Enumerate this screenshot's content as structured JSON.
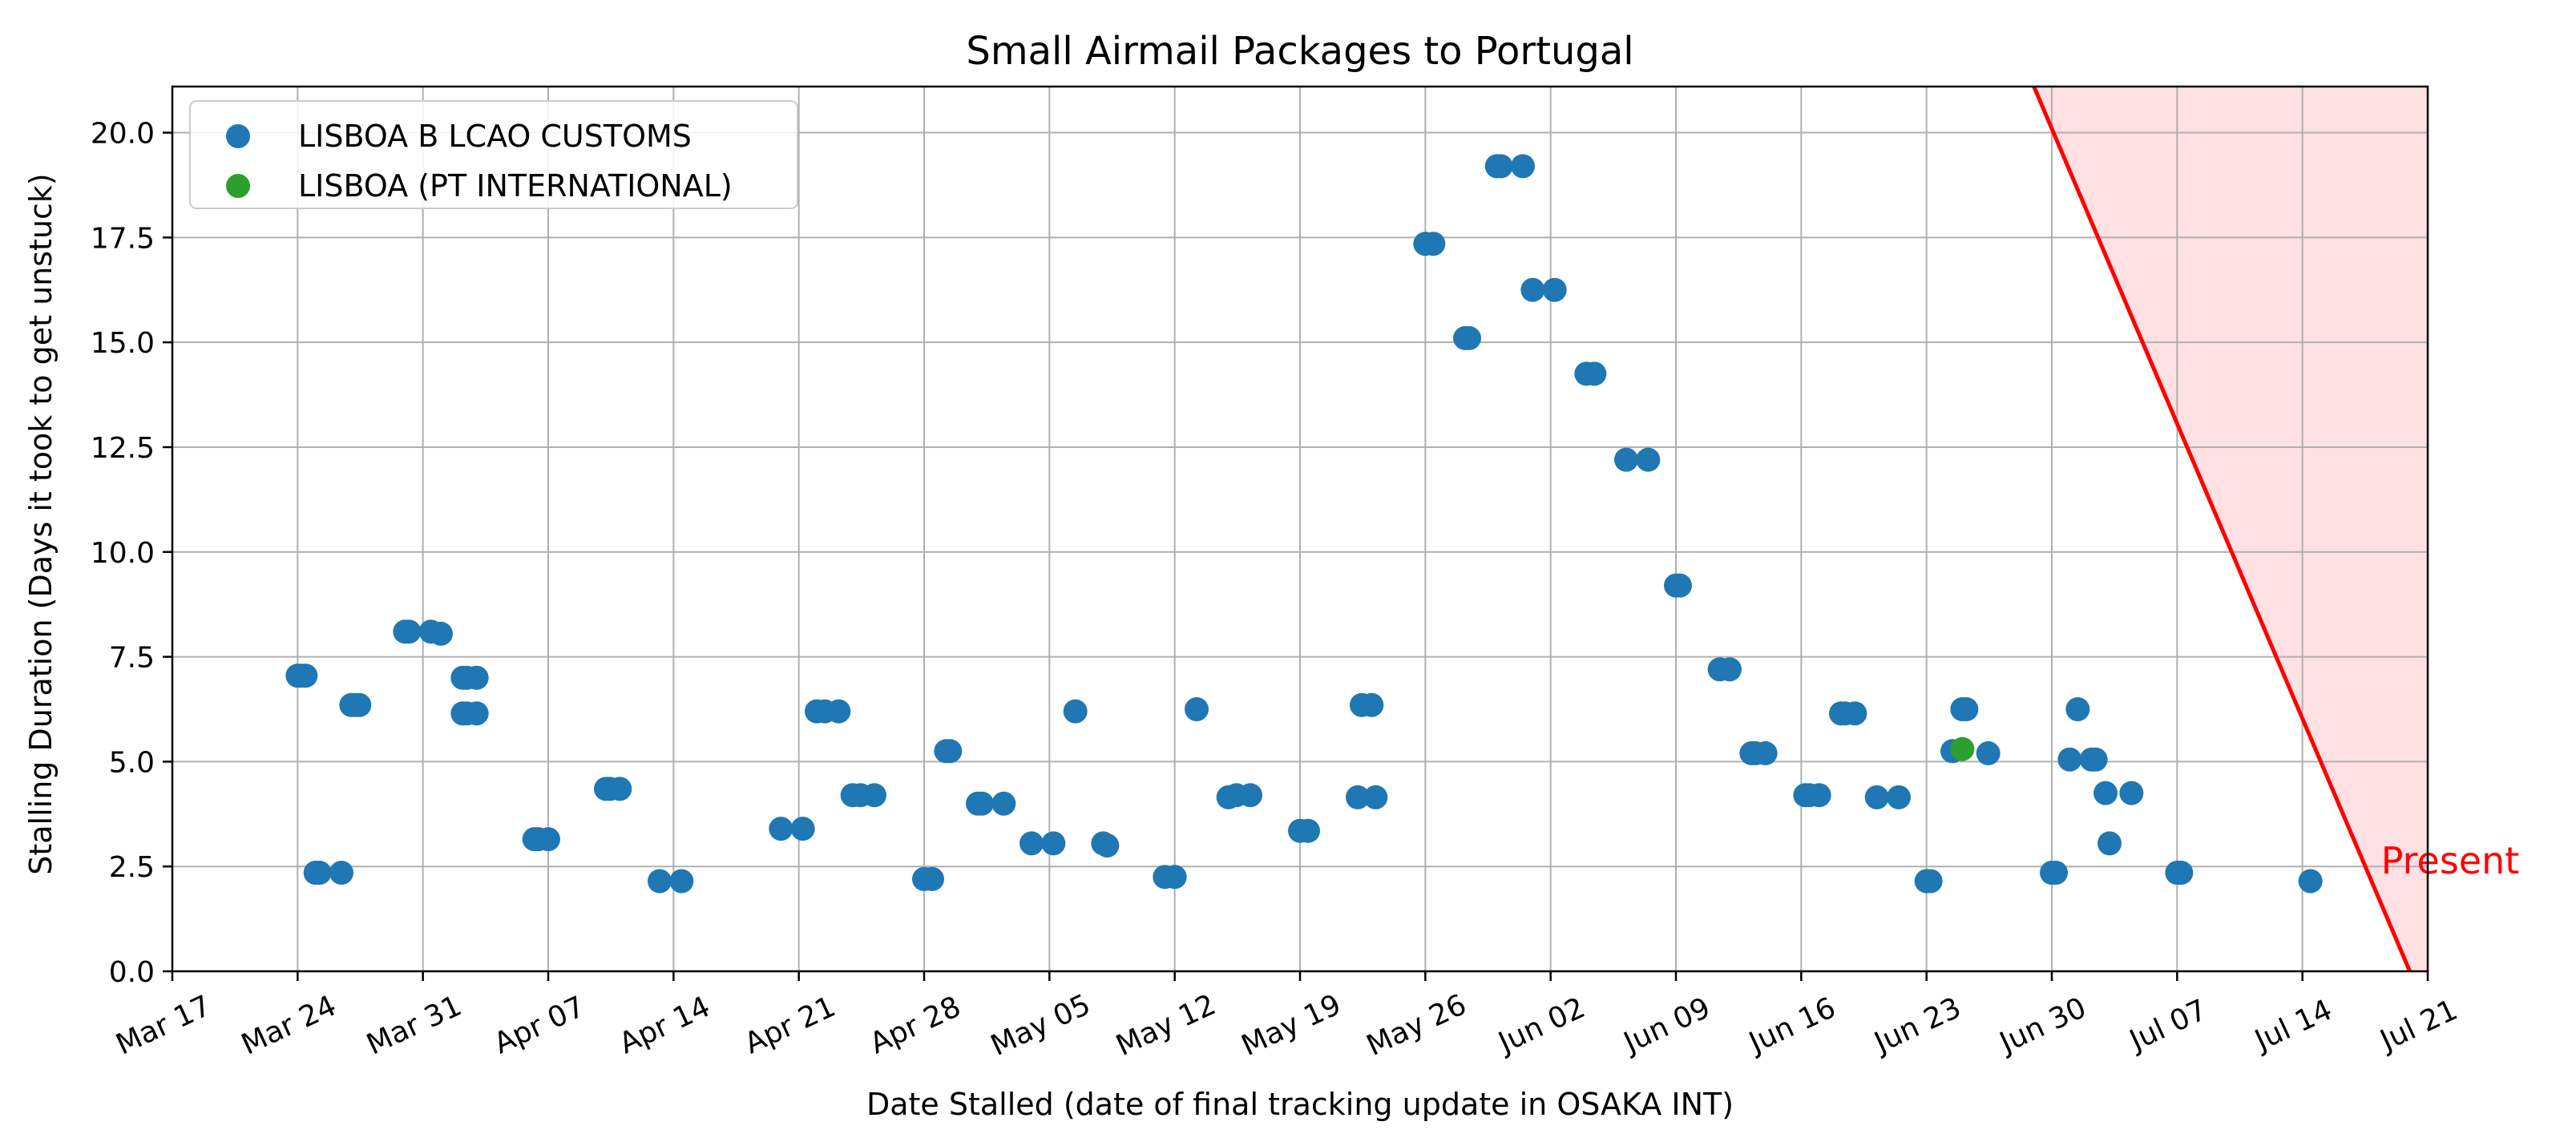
{
  "chart_data": {
    "type": "scatter",
    "title": "Small Airmail Packages to Portugal",
    "xlabel": "Date Stalled (date of final tracking update in OSAKA INT)",
    "ylabel": "Stalling Duration (Days it took to get unstuck)",
    "x_is_date": true,
    "xlim": [
      "2025-03-17",
      "2025-07-21"
    ],
    "ylim": [
      0,
      21.1
    ],
    "x_ticks": [
      {
        "date": "2025-03-17",
        "label": "Mar 17"
      },
      {
        "date": "2025-03-24",
        "label": "Mar 24"
      },
      {
        "date": "2025-03-31",
        "label": "Mar 31"
      },
      {
        "date": "2025-04-07",
        "label": "Apr 07"
      },
      {
        "date": "2025-04-14",
        "label": "Apr 14"
      },
      {
        "date": "2025-04-21",
        "label": "Apr 21"
      },
      {
        "date": "2025-04-28",
        "label": "Apr 28"
      },
      {
        "date": "2025-05-05",
        "label": "May 05"
      },
      {
        "date": "2025-05-12",
        "label": "May 12"
      },
      {
        "date": "2025-05-19",
        "label": "May 19"
      },
      {
        "date": "2025-05-26",
        "label": "May 26"
      },
      {
        "date": "2025-06-02",
        "label": "Jun 02"
      },
      {
        "date": "2025-06-09",
        "label": "Jun 09"
      },
      {
        "date": "2025-06-16",
        "label": "Jun 16"
      },
      {
        "date": "2025-06-23",
        "label": "Jun 23"
      },
      {
        "date": "2025-06-30",
        "label": "Jun 30"
      },
      {
        "date": "2025-07-07",
        "label": "Jul 07"
      },
      {
        "date": "2025-07-14",
        "label": "Jul 14"
      },
      {
        "date": "2025-07-21",
        "label": "Jul 21"
      }
    ],
    "y_ticks": [
      {
        "value": 0.0,
        "label": "0.0"
      },
      {
        "value": 2.5,
        "label": "2.5"
      },
      {
        "value": 5.0,
        "label": "5.0"
      },
      {
        "value": 7.5,
        "label": "7.5"
      },
      {
        "value": 10.0,
        "label": "10.0"
      },
      {
        "value": 12.5,
        "label": "12.5"
      },
      {
        "value": 15.0,
        "label": "15.0"
      },
      {
        "value": 17.5,
        "label": "17.5"
      },
      {
        "value": 20.0,
        "label": "20.0"
      }
    ],
    "grid": true,
    "legend": "top-left",
    "series": [
      {
        "name": "LISBOA B LCAO CUSTOMS",
        "color": "#1f77b4",
        "points": [
          {
            "x": "2025-03-24",
            "y": 7.05
          },
          {
            "x": "2025-03-24",
            "y": 7.05
          },
          {
            "x": "2025-03-24",
            "y": 7.05
          },
          {
            "x": "2025-03-25",
            "y": 2.35
          },
          {
            "x": "2025-03-25",
            "y": 2.35
          },
          {
            "x": "2025-03-26",
            "y": 2.35
          },
          {
            "x": "2025-03-27",
            "y": 6.35
          },
          {
            "x": "2025-03-27",
            "y": 6.35
          },
          {
            "x": "2025-03-27",
            "y": 6.35
          },
          {
            "x": "2025-03-30",
            "y": 8.1
          },
          {
            "x": "2025-03-30",
            "y": 8.1
          },
          {
            "x": "2025-03-31",
            "y": 8.1
          },
          {
            "x": "2025-04-01",
            "y": 8.05
          },
          {
            "x": "2025-04-02",
            "y": 7.0
          },
          {
            "x": "2025-04-02",
            "y": 7.0
          },
          {
            "x": "2025-04-03",
            "y": 7.0
          },
          {
            "x": "2025-04-02",
            "y": 6.15
          },
          {
            "x": "2025-04-02",
            "y": 6.15
          },
          {
            "x": "2025-04-03",
            "y": 6.15
          },
          {
            "x": "2025-04-06",
            "y": 3.15
          },
          {
            "x": "2025-04-06",
            "y": 3.15
          },
          {
            "x": "2025-04-07",
            "y": 3.15
          },
          {
            "x": "2025-04-10",
            "y": 4.35
          },
          {
            "x": "2025-04-10",
            "y": 4.35
          },
          {
            "x": "2025-04-11",
            "y": 4.35
          },
          {
            "x": "2025-04-13",
            "y": 2.15
          },
          {
            "x": "2025-04-14",
            "y": 2.15
          },
          {
            "x": "2025-04-20",
            "y": 3.4
          },
          {
            "x": "2025-04-21",
            "y": 3.4
          },
          {
            "x": "2025-04-22",
            "y": 6.2
          },
          {
            "x": "2025-04-22",
            "y": 6.2
          },
          {
            "x": "2025-04-23",
            "y": 6.2
          },
          {
            "x": "2025-04-24",
            "y": 4.2
          },
          {
            "x": "2025-04-24",
            "y": 4.2
          },
          {
            "x": "2025-04-25",
            "y": 4.2
          },
          {
            "x": "2025-04-28",
            "y": 2.2
          },
          {
            "x": "2025-04-28",
            "y": 2.2
          },
          {
            "x": "2025-04-29",
            "y": 5.25
          },
          {
            "x": "2025-04-29",
            "y": 5.25
          },
          {
            "x": "2025-05-01",
            "y": 4.0
          },
          {
            "x": "2025-05-01",
            "y": 4.0
          },
          {
            "x": "2025-05-02",
            "y": 4.0
          },
          {
            "x": "2025-05-04",
            "y": 3.05
          },
          {
            "x": "2025-05-05",
            "y": 3.05
          },
          {
            "x": "2025-05-06",
            "y": 6.2
          },
          {
            "x": "2025-05-08",
            "y": 3.05
          },
          {
            "x": "2025-05-08",
            "y": 3.0
          },
          {
            "x": "2025-05-11",
            "y": 2.25
          },
          {
            "x": "2025-05-12",
            "y": 2.25
          },
          {
            "x": "2025-05-13",
            "y": 6.25
          },
          {
            "x": "2025-05-15",
            "y": 4.2
          },
          {
            "x": "2025-05-15",
            "y": 4.15
          },
          {
            "x": "2025-05-16",
            "y": 4.2
          },
          {
            "x": "2025-05-19",
            "y": 3.35
          },
          {
            "x": "2025-05-19",
            "y": 3.35
          },
          {
            "x": "2025-05-22",
            "y": 4.15
          },
          {
            "x": "2025-05-22",
            "y": 6.35
          },
          {
            "x": "2025-05-23",
            "y": 6.35
          },
          {
            "x": "2025-05-23",
            "y": 4.15
          },
          {
            "x": "2025-05-26",
            "y": 17.35
          },
          {
            "x": "2025-05-26",
            "y": 17.35
          },
          {
            "x": "2025-05-28",
            "y": 15.1
          },
          {
            "x": "2025-05-28",
            "y": 15.1
          },
          {
            "x": "2025-05-30",
            "y": 19.2
          },
          {
            "x": "2025-05-30",
            "y": 19.2
          },
          {
            "x": "2025-05-31",
            "y": 19.2
          },
          {
            "x": "2025-06-01",
            "y": 16.25
          },
          {
            "x": "2025-06-02",
            "y": 16.25
          },
          {
            "x": "2025-06-04",
            "y": 14.25
          },
          {
            "x": "2025-06-04",
            "y": 14.25
          },
          {
            "x": "2025-06-06",
            "y": 12.2
          },
          {
            "x": "2025-06-07",
            "y": 12.2
          },
          {
            "x": "2025-06-09",
            "y": 9.2
          },
          {
            "x": "2025-06-09",
            "y": 9.2
          },
          {
            "x": "2025-06-11",
            "y": 7.2
          },
          {
            "x": "2025-06-12",
            "y": 7.2
          },
          {
            "x": "2025-06-13",
            "y": 5.2
          },
          {
            "x": "2025-06-13",
            "y": 5.2
          },
          {
            "x": "2025-06-14",
            "y": 5.2
          },
          {
            "x": "2025-06-16",
            "y": 4.2
          },
          {
            "x": "2025-06-16",
            "y": 4.2
          },
          {
            "x": "2025-06-17",
            "y": 4.2
          },
          {
            "x": "2025-06-18",
            "y": 6.15
          },
          {
            "x": "2025-06-18",
            "y": 6.15
          },
          {
            "x": "2025-06-19",
            "y": 6.15
          },
          {
            "x": "2025-06-20",
            "y": 4.15
          },
          {
            "x": "2025-06-21",
            "y": 4.15
          },
          {
            "x": "2025-06-23",
            "y": 2.15
          },
          {
            "x": "2025-06-23",
            "y": 2.15
          },
          {
            "x": "2025-06-24",
            "y": 5.25
          },
          {
            "x": "2025-06-25",
            "y": 6.25
          },
          {
            "x": "2025-06-25",
            "y": 6.25
          },
          {
            "x": "2025-06-26",
            "y": 5.2
          },
          {
            "x": "2025-06-30",
            "y": 2.35
          },
          {
            "x": "2025-06-30",
            "y": 2.35
          },
          {
            "x": "2025-07-01",
            "y": 6.25
          },
          {
            "x": "2025-07-01",
            "y": 5.05
          },
          {
            "x": "2025-07-02",
            "y": 5.05
          },
          {
            "x": "2025-07-02",
            "y": 5.05
          },
          {
            "x": "2025-07-03",
            "y": 4.25
          },
          {
            "x": "2025-07-03",
            "y": 3.05
          },
          {
            "x": "2025-07-04",
            "y": 4.25
          },
          {
            "x": "2025-07-07",
            "y": 2.35
          },
          {
            "x": "2025-07-07",
            "y": 2.35
          },
          {
            "x": "2025-07-14",
            "y": 2.15
          }
        ]
      },
      {
        "name": "LISBOA (PT INTERNATIONAL)",
        "color": "#2ca02c",
        "points": [
          {
            "x": "2025-06-25",
            "y": 5.3
          }
        ]
      }
    ],
    "annotations": [
      {
        "text": "Present",
        "color": "#ff0000",
        "line": {
          "from": {
            "x": "2025-06-29",
            "y": 21.1
          },
          "to": {
            "x": "2025-07-20",
            "y": 0
          }
        },
        "shade_color": "#ffe0e3",
        "label_at": {
          "x": "2025-07-21",
          "y": 2.6
        }
      }
    ]
  }
}
